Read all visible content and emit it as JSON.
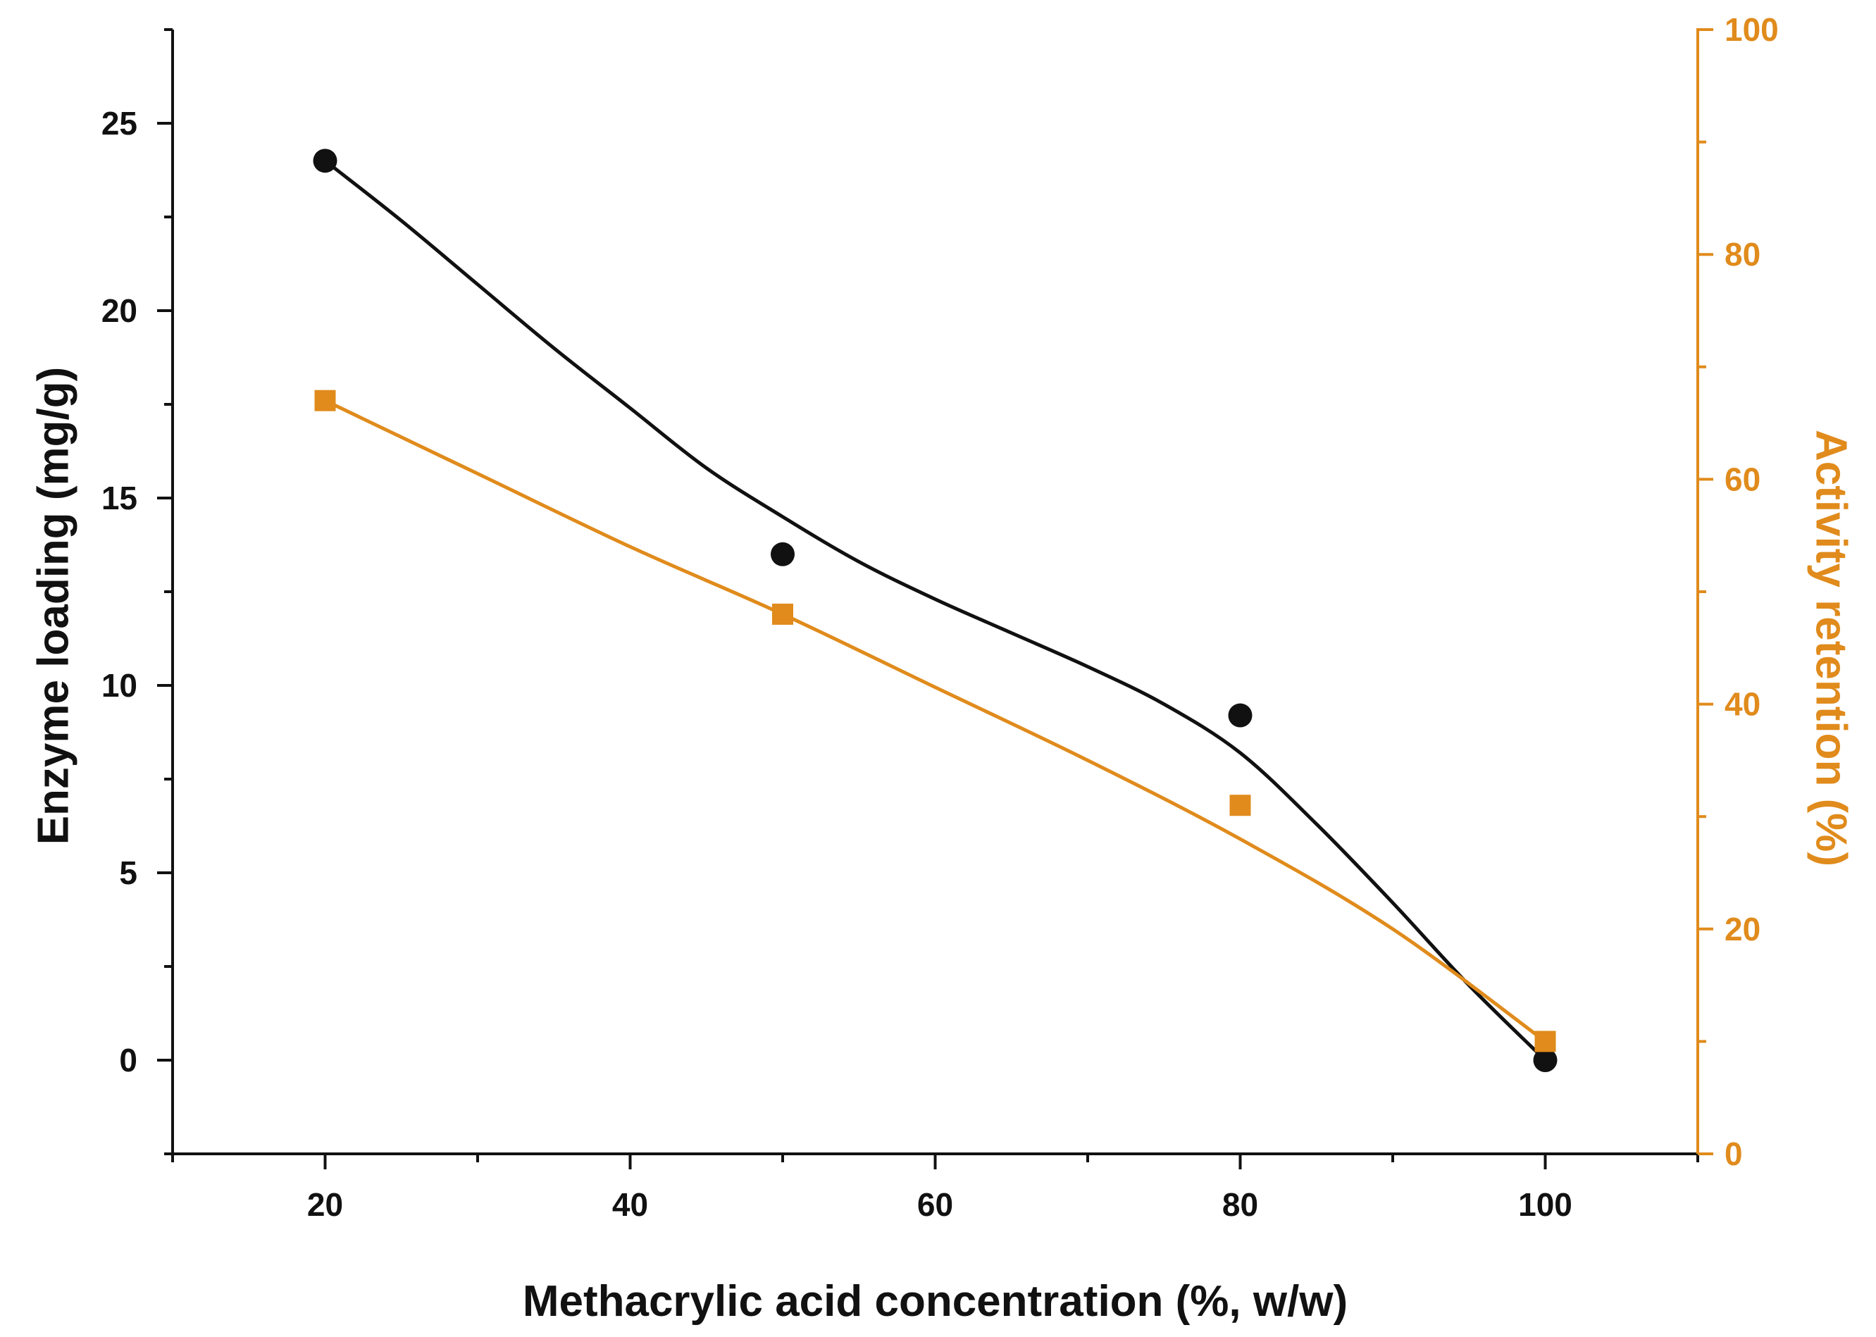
{
  "chart_data": {
    "type": "scatter",
    "title": "",
    "xlabel": "Methacrylic acid concentration (%, w/w)",
    "ylabel_left": "Enzyme loading (mg/g)",
    "ylabel_right": "Activity retention (%)",
    "xlim": [
      10,
      110
    ],
    "ylim_left": [
      -2.5,
      27.5
    ],
    "ylim_right": [
      0,
      100
    ],
    "x_ticks_major": [
      20,
      40,
      60,
      80,
      100
    ],
    "x_tick_labels": [
      "20",
      "40",
      "60",
      "80",
      "100"
    ],
    "x_ticks_minor": [
      10,
      30,
      50,
      70,
      90,
      110
    ],
    "y_left_ticks_major": [
      0,
      5,
      10,
      15,
      20,
      25
    ],
    "y_left_tick_labels": [
      "0",
      "5",
      "10",
      "15",
      "20",
      "25"
    ],
    "y_left_ticks_minor": [
      -2.5,
      2.5,
      7.5,
      12.5,
      17.5,
      22.5,
      27.5
    ],
    "y_right_ticks_major": [
      0,
      20,
      40,
      60,
      80,
      100
    ],
    "y_right_tick_labels": [
      "0",
      "20",
      "40",
      "60",
      "80",
      "100"
    ],
    "y_right_ticks_minor": [
      10,
      30,
      50,
      70,
      90
    ],
    "series": [
      {
        "name": "Enzyme loading",
        "axis": "left",
        "marker": "circle",
        "color": "#000000",
        "x": [
          20,
          50,
          80,
          100
        ],
        "y": [
          24.0,
          13.5,
          9.2,
          0.0
        ],
        "fit_curve": {
          "x": [
            20,
            25,
            30,
            35,
            40,
            45,
            50,
            55,
            60,
            65,
            70,
            75,
            80,
            85,
            90,
            95,
            100
          ],
          "y": [
            24.0,
            22.4,
            20.7,
            19.0,
            17.4,
            15.8,
            14.5,
            13.3,
            12.3,
            11.4,
            10.5,
            9.5,
            8.2,
            6.3,
            4.2,
            2.0,
            0.0
          ]
        }
      },
      {
        "name": "Activity retention",
        "axis": "right",
        "marker": "square",
        "color": "#e08b1c",
        "x": [
          20,
          50,
          80,
          100
        ],
        "y": [
          67.0,
          48.0,
          31.0,
          10.0
        ],
        "fit_curve": {
          "x": [
            20,
            30,
            40,
            50,
            60,
            70,
            80,
            90,
            100
          ],
          "y": [
            67.0,
            60.5,
            54.0,
            48.0,
            41.5,
            35.0,
            28.0,
            20.0,
            10.0
          ]
        }
      }
    ]
  }
}
